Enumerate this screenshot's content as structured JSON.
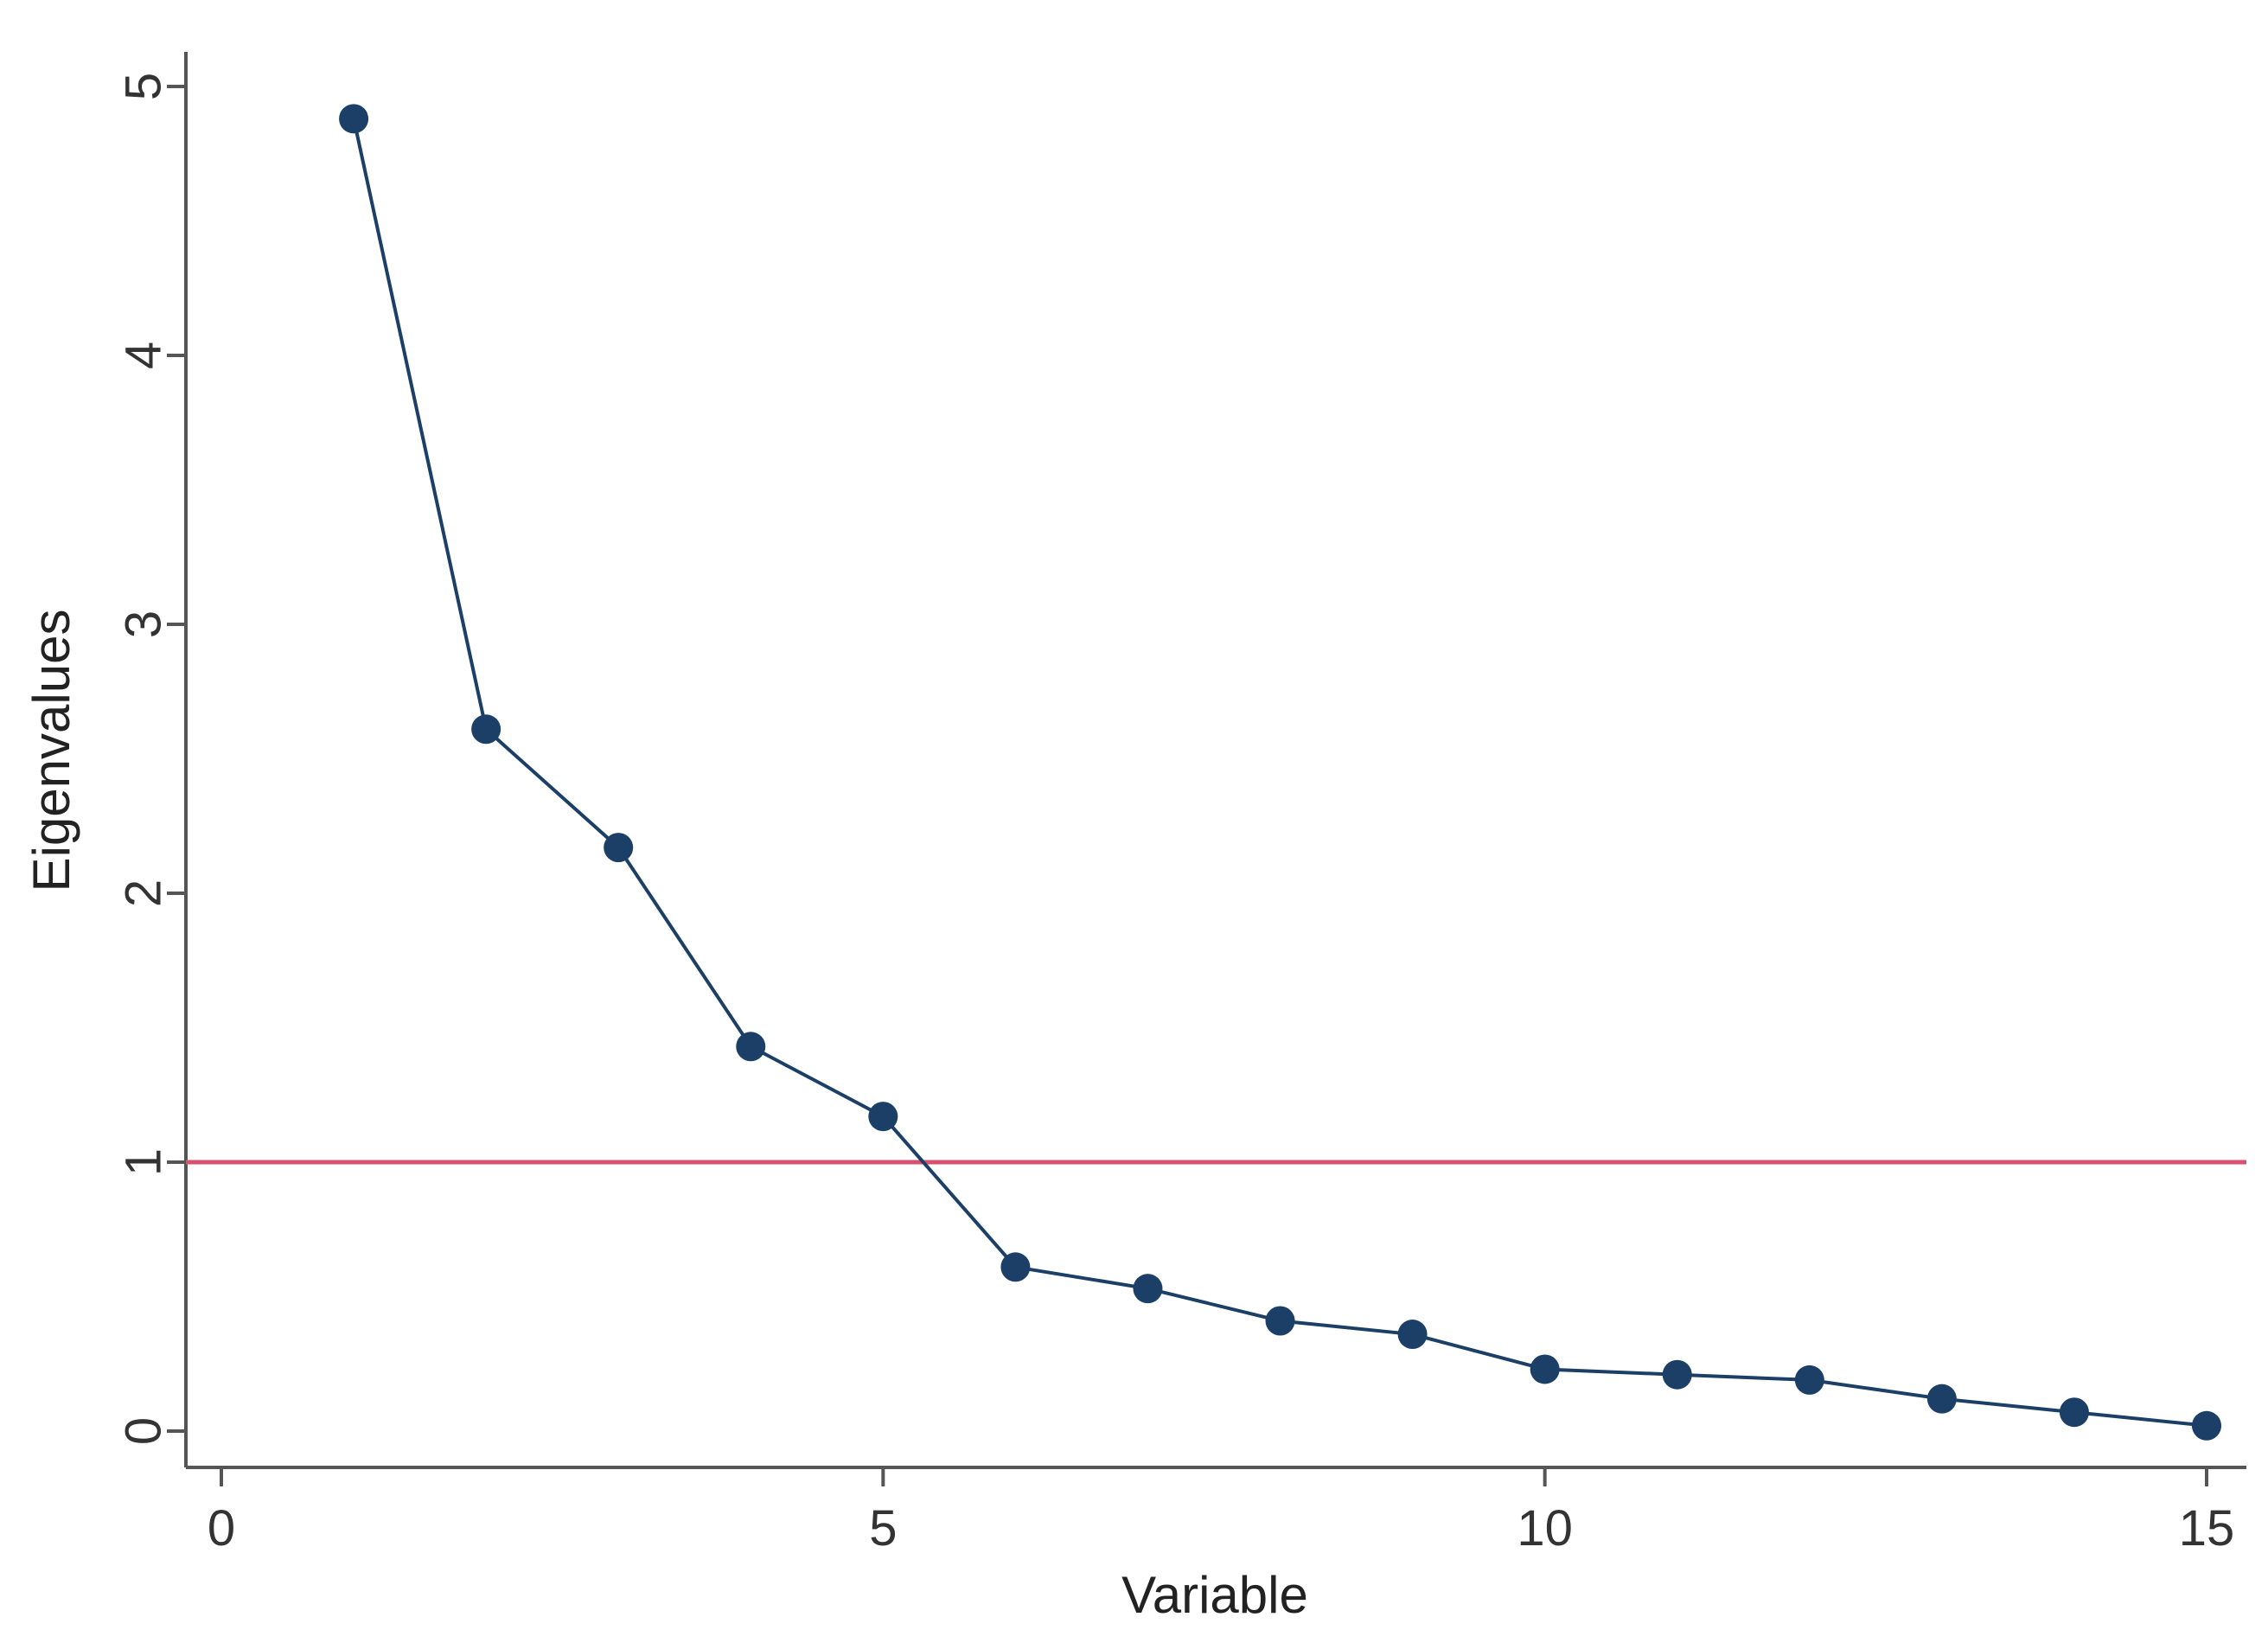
{
  "chart_data": {
    "type": "scatter",
    "title": "",
    "xlabel": "Variable",
    "ylabel": "Eigenvalues",
    "xlim": [
      0,
      15
    ],
    "ylim": [
      0,
      5
    ],
    "x_ticks": [
      0,
      5,
      10,
      15
    ],
    "y_ticks": [
      0,
      1,
      2,
      3,
      4,
      5
    ],
    "x_tick_labels": [
      "0",
      "5",
      "10",
      "15"
    ],
    "y_tick_labels": [
      "0",
      "1",
      "2",
      "3",
      "4",
      "5"
    ],
    "grid": false,
    "legend": "none",
    "series": [
      {
        "x": [
          1,
          2,
          3,
          4,
          5,
          6,
          7,
          8,
          9,
          10,
          11,
          12,
          13,
          14,
          15
        ],
        "y": [
          4.88,
          2.61,
          2.17,
          1.43,
          1.17,
          0.61,
          0.53,
          0.41,
          0.36,
          0.23,
          0.21,
          0.19,
          0.12,
          0.07,
          0.02
        ],
        "color": "#1b3f66",
        "marker": "circle",
        "connected": true
      }
    ],
    "reference_line": {
      "orientation": "horizontal",
      "y": 1,
      "color": "#d8506e"
    }
  }
}
